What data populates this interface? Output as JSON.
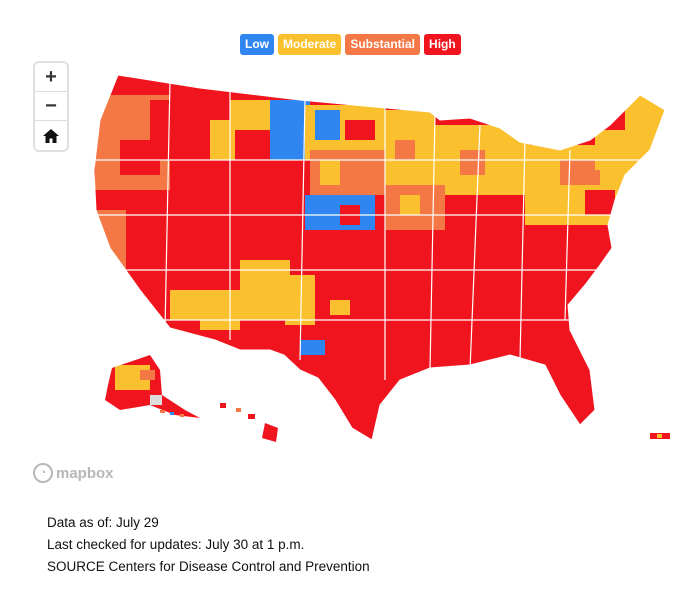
{
  "legend": [
    {
      "label": "Low",
      "color": "#2f86f0"
    },
    {
      "label": "Moderate",
      "color": "#fbc02d"
    },
    {
      "label": "Substantial",
      "color": "#f47845"
    },
    {
      "label": "High",
      "color": "#f0141e"
    }
  ],
  "controls": {
    "zoom_in": "+",
    "zoom_out": "−",
    "home_icon": "home-icon"
  },
  "attribution": "mapbox",
  "footer": {
    "data_as_of": "Data as of: July 29",
    "last_checked": "Last checked for updates: July 30 at 1 p.m.",
    "source": "SOURCE Centers for Disease Control and Prevention"
  },
  "colors": {
    "low": "#2f86f0",
    "moderate": "#fbc02d",
    "substantial": "#f47845",
    "high": "#f0141e"
  }
}
